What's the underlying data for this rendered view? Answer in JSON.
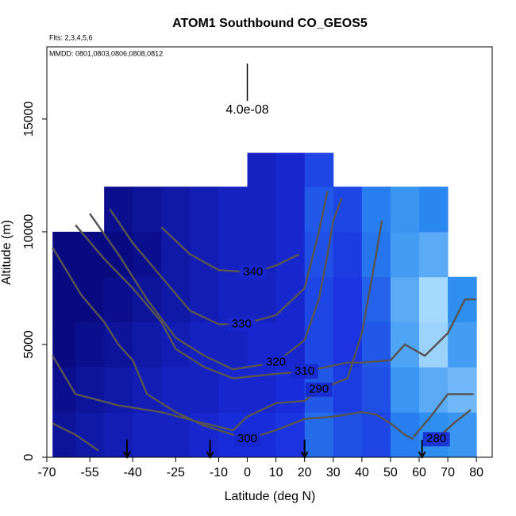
{
  "chart_data": {
    "type": "curtain",
    "title": "ATOM1 Southbound CO_GEOS5",
    "subtitle": "Flts: 2,3,4,5,6",
    "annotation": "MMDD: 0801,0803,0806,0808,0812",
    "x_label": "Latitude (deg N)",
    "y_label": "Altitude (m)",
    "xlim": [
      -70,
      85.5
    ],
    "ylim": [
      0,
      18200
    ],
    "xticks": [
      -70,
      -55,
      -40,
      -25,
      -10,
      0,
      10,
      20,
      30,
      40,
      50,
      60,
      70,
      80
    ],
    "yticks": [
      0,
      5000,
      10000,
      15000
    ],
    "scale_bar": {
      "value": 4e-08,
      "label": "4.0e-08"
    },
    "flight_markers": [
      -42,
      -13,
      20,
      61
    ],
    "curtain": {
      "lat_edges": [
        -68,
        -60,
        -50,
        -40,
        -30,
        -20,
        -10,
        0,
        10,
        20,
        30,
        40,
        50,
        60,
        70,
        80
      ],
      "alt_edges": [
        0,
        2000,
        4000,
        6000,
        8000,
        10000,
        12000,
        13500
      ],
      "values": [
        [
          64,
          66,
          68,
          70,
          70,
          72,
          74,
          74,
          76,
          88,
          82,
          80,
          92,
          96,
          98
        ],
        [
          62,
          64,
          66,
          68,
          70,
          70,
          72,
          72,
          74,
          84,
          78,
          82,
          98,
          104,
          108
        ],
        [
          60,
          62,
          64,
          66,
          68,
          70,
          70,
          72,
          72,
          80,
          76,
          84,
          102,
          116,
          100
        ],
        [
          60,
          60,
          62,
          64,
          66,
          68,
          70,
          70,
          72,
          80,
          76,
          86,
          104,
          118,
          96
        ],
        [
          60,
          60,
          60,
          62,
          66,
          68,
          70,
          70,
          72,
          82,
          78,
          90,
          100,
          104,
          null
        ],
        [
          null,
          null,
          62,
          64,
          66,
          68,
          70,
          70,
          72,
          84,
          80,
          92,
          98,
          94,
          null
        ],
        [
          null,
          null,
          null,
          null,
          null,
          null,
          null,
          70,
          72,
          80,
          null,
          null,
          null,
          null,
          null
        ]
      ]
    },
    "series": [
      {
        "name": "280",
        "color": "#555555",
        "x": [
          -68,
          -60,
          -52,
          null,
          66,
          72,
          78
        ],
        "y": [
          1500,
          1000,
          300,
          null,
          800,
          1500,
          2100
        ]
      },
      {
        "name": "290",
        "color": "#555555",
        "x": [
          -68,
          -60,
          -45,
          -30,
          -15,
          -5,
          0,
          10,
          20,
          25,
          35,
          40,
          45,
          47,
          null,
          58,
          64,
          70,
          79
        ],
        "y": [
          4500,
          2800,
          2300,
          2000,
          1500,
          1200,
          1800,
          2400,
          2500,
          3000,
          3500,
          5500,
          9000,
          10500,
          null,
          900,
          1800,
          2800,
          2800
        ]
      },
      {
        "name": "300",
        "color": "#555555",
        "x": [
          -68,
          -58,
          -50,
          -45,
          -40,
          -35,
          -25,
          -15,
          0,
          10,
          20,
          30,
          40,
          45,
          50,
          55,
          58
        ],
        "y": [
          9300,
          7200,
          6000,
          5000,
          4300,
          2800,
          2000,
          1400,
          800,
          1200,
          1700,
          1800,
          2000,
          1900,
          1500,
          1000,
          800
        ]
      },
      {
        "name": "310",
        "color": "#555555",
        "x": [
          -60,
          -50,
          -40,
          -30,
          -25,
          -15,
          -5,
          10,
          20,
          35,
          40,
          50,
          55,
          62,
          70,
          76,
          80
        ],
        "y": [
          10300,
          8800,
          7500,
          6000,
          4800,
          4000,
          3500,
          3700,
          3800,
          4200,
          4200,
          4300,
          5000,
          4500,
          5500,
          7000,
          7000
        ]
      },
      {
        "name": "320",
        "color": "#555555",
        "x": [
          -55,
          -45,
          -35,
          -25,
          -15,
          -5,
          10,
          20,
          25,
          28,
          30,
          33
        ],
        "y": [
          10800,
          9000,
          7000,
          5300,
          4500,
          3900,
          4200,
          5200,
          7000,
          9000,
          10500,
          11500
        ]
      },
      {
        "name": "330",
        "color": "#555555",
        "x": [
          -48,
          -40,
          -30,
          -20,
          -10,
          -2,
          10,
          20,
          25,
          28
        ],
        "y": [
          11000,
          9500,
          8000,
          6500,
          5900,
          5900,
          6300,
          7500,
          10000,
          11800
        ]
      },
      {
        "name": "340",
        "color": "#555555",
        "x": [
          -30,
          -20,
          -10,
          2,
          10,
          18
        ],
        "y": [
          10200,
          9000,
          8300,
          8200,
          8500,
          9000
        ]
      }
    ]
  }
}
